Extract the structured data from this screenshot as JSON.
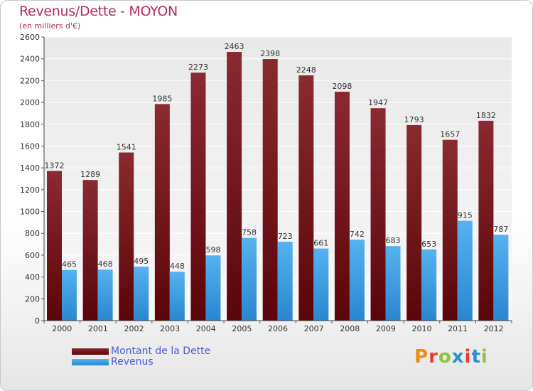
{
  "title": "Revenus/Dette - MOYON",
  "subtitle": "(en milliers d'€)",
  "logo": "Proxiti",
  "colors": {
    "debt": "#6b0d10",
    "revenue": "#3a9ee4",
    "title": "#b42b5e",
    "legend_text": "#4a5bd8"
  },
  "chart_data": {
    "type": "bar",
    "categories": [
      "2000",
      "2001",
      "2002",
      "2003",
      "2004",
      "2005",
      "2006",
      "2007",
      "2008",
      "2009",
      "2010",
      "2011",
      "2012"
    ],
    "series": [
      {
        "name": "Montant de la Dette",
        "color": "#6b0d10",
        "values": [
          1372,
          1289,
          1541,
          1985,
          2273,
          2463,
          2398,
          2248,
          2098,
          1947,
          1793,
          1657,
          1832
        ]
      },
      {
        "name": "Revenus",
        "color": "#3a9ee4",
        "values": [
          465,
          468,
          495,
          448,
          598,
          758,
          723,
          661,
          742,
          683,
          653,
          915,
          787
        ]
      }
    ],
    "ylim": [
      0,
      2600
    ],
    "yticks": [
      0,
      200,
      400,
      600,
      800,
      1000,
      1200,
      1400,
      1600,
      1800,
      2000,
      2200,
      2400,
      2600
    ],
    "grid": true,
    "legend_position": "bottom-left"
  }
}
